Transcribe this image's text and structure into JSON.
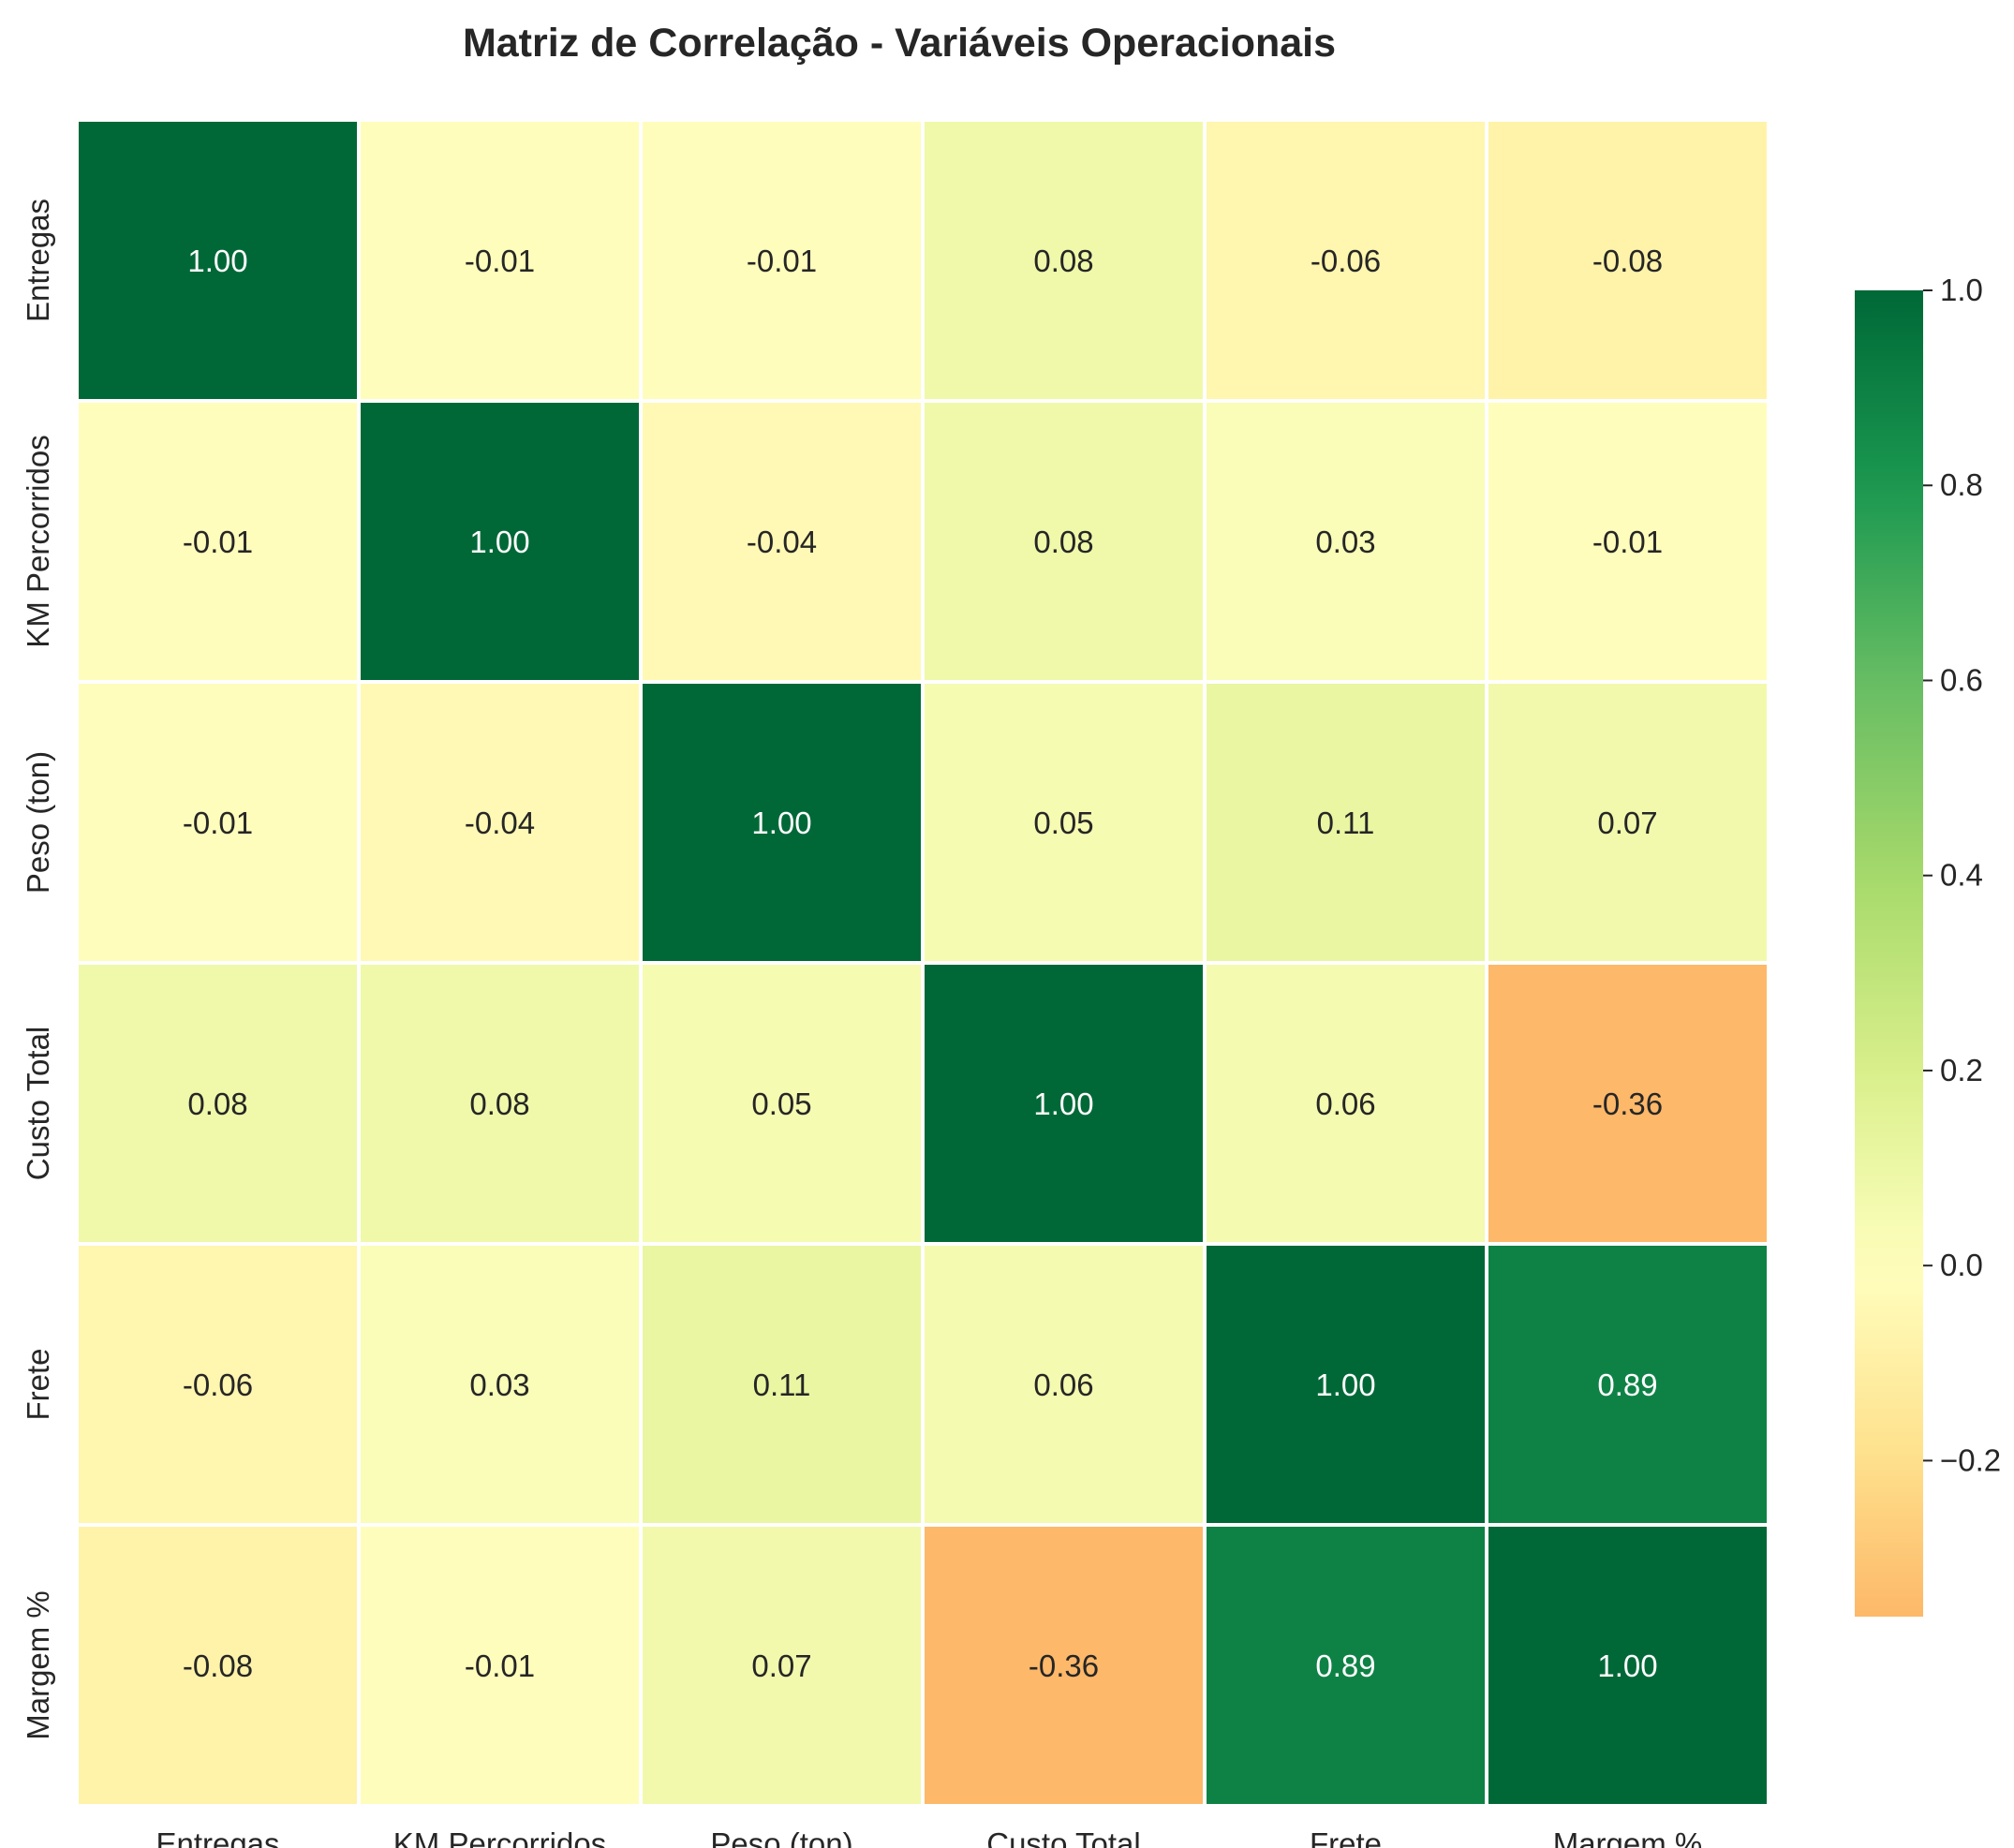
{
  "chart_data": {
    "type": "heatmap",
    "title": "Matriz de Correlação - Variáveis Operacionais",
    "row_labels": [
      "Entregas",
      "KM Percorridos",
      "Peso (ton)",
      "Custo Total",
      "Frete",
      "Margem %"
    ],
    "col_labels": [
      "Entregas",
      "KM Percorridos",
      "Peso (ton)",
      "Custo Total",
      "Frete",
      "Margem %"
    ],
    "values": [
      [
        1.0,
        -0.01,
        -0.01,
        0.08,
        -0.06,
        -0.08
      ],
      [
        -0.01,
        1.0,
        -0.04,
        0.08,
        0.03,
        -0.01
      ],
      [
        -0.01,
        -0.04,
        1.0,
        0.05,
        0.11,
        0.07
      ],
      [
        0.08,
        0.08,
        0.05,
        1.0,
        0.06,
        -0.36
      ],
      [
        -0.06,
        0.03,
        0.11,
        0.06,
        1.0,
        0.89
      ],
      [
        -0.08,
        -0.01,
        0.07,
        -0.36,
        0.89,
        1.0
      ]
    ],
    "value_format": "2 decimals",
    "colormap": "RdYlGn",
    "color_range": [
      -0.36,
      1.0
    ],
    "colorbar": {
      "ticks": [
        1.0,
        0.8,
        0.6,
        0.4,
        0.2,
        0.0,
        -0.2
      ],
      "tick_labels": [
        "1.0",
        "0.8",
        "0.6",
        "0.4",
        "0.2",
        "0.0",
        "−0.2"
      ]
    },
    "grid": false,
    "legend": "colorbar-right"
  }
}
